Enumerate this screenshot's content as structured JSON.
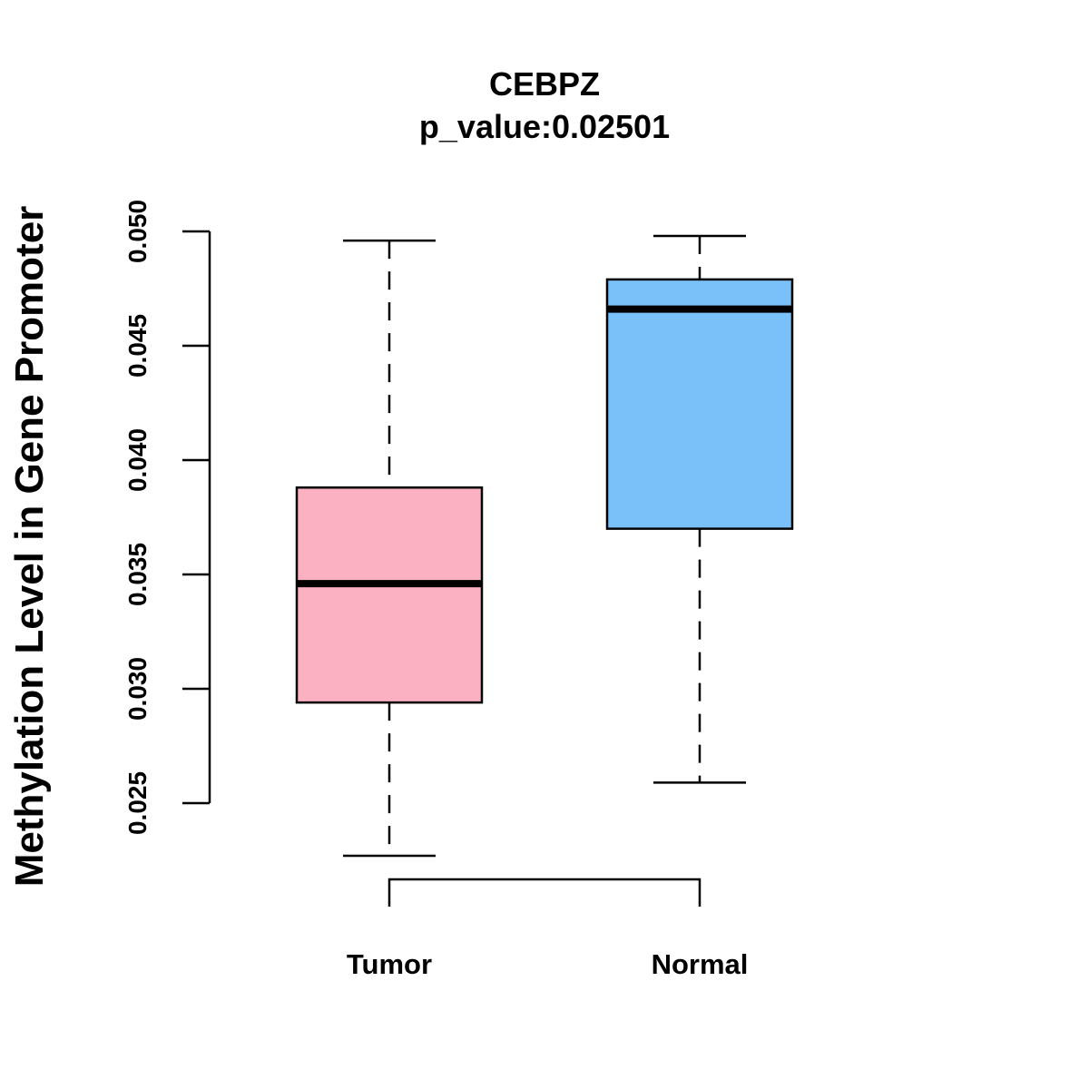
{
  "chart_data": {
    "type": "boxplot",
    "title": "CEBPZ",
    "subtitle": "p_value:0.02501",
    "xlabel": "",
    "ylabel": "Methylation Level in Gene Promoter",
    "ylim": [
      0.025,
      0.05
    ],
    "yticks": [
      "0.025",
      "0.030",
      "0.035",
      "0.040",
      "0.045",
      "0.050"
    ],
    "grid": false,
    "categories": [
      "Tumor",
      "Normal"
    ],
    "boxes": [
      {
        "name": "Tumor",
        "whisker_low": 0.0227,
        "q1": 0.0294,
        "median": 0.0346,
        "q3": 0.0388,
        "whisker_high": 0.0496,
        "color": "#FBB1C1"
      },
      {
        "name": "Normal",
        "whisker_low": 0.0259,
        "q1": 0.037,
        "median": 0.0466,
        "q3": 0.0479,
        "whisker_high": 0.0498,
        "color": "#79C1F8"
      }
    ],
    "comparison_bracket": [
      "Tumor",
      "Normal"
    ]
  }
}
